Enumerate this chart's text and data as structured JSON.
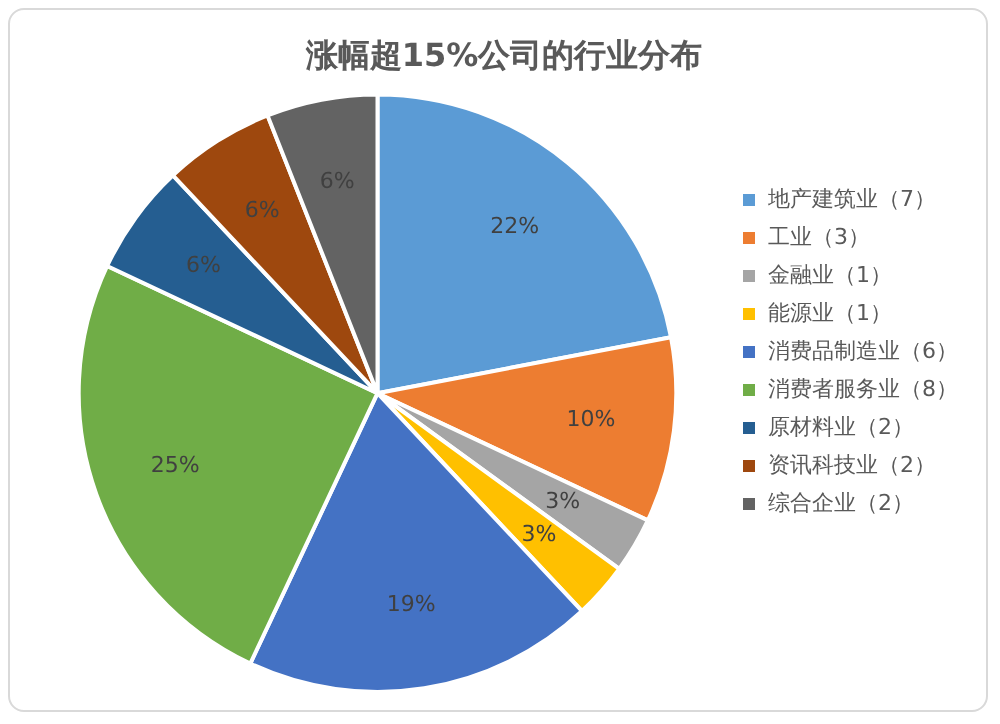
{
  "chart_data": {
    "type": "pie",
    "title": "涨幅超15%公司的行业分布",
    "categories": [
      "地产建筑业（7）",
      "工业（3）",
      "金融业（1）",
      "能源业（1）",
      "消费品制造业（6）",
      "消费者服务业（8）",
      "原材料业（2）",
      "资讯科技业（2）",
      "综合企业（2）"
    ],
    "values": [
      22,
      10,
      3,
      3,
      19,
      25,
      6,
      6,
      6
    ],
    "value_labels": [
      "22%",
      "10%",
      "3%",
      "3%",
      "19%",
      "25%",
      "6%",
      "6%",
      "6%"
    ],
    "colors": [
      "#5b9bd5",
      "#ed7d31",
      "#a5a5a5",
      "#ffc000",
      "#4472c4",
      "#70ad47",
      "#255e91",
      "#9e480e",
      "#636363"
    ],
    "legend": "right"
  }
}
